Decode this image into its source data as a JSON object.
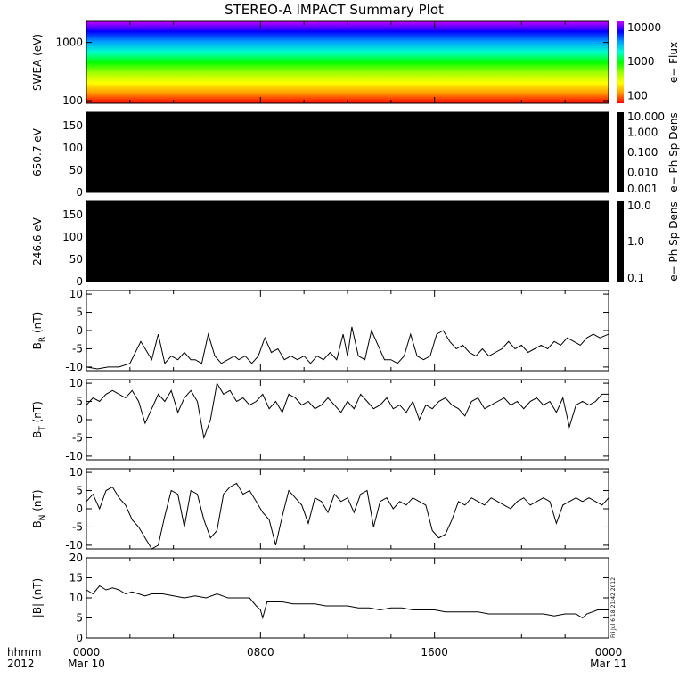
{
  "chart_data": {
    "type": "line",
    "title": "STEREO-A IMPACT Summary Plot",
    "x_axis": {
      "ticks": [
        "0000",
        "0800",
        "1600",
        "0000"
      ],
      "tick_hours": [
        0,
        8,
        16,
        24
      ],
      "sublabels": [
        "Mar 10",
        "",
        "",
        "Mar 11"
      ],
      "left_labels": [
        "hhmm",
        "2012"
      ],
      "range_hours": [
        0,
        24
      ]
    },
    "timestamp": "Fri Jul  6 18:21:42 2012",
    "panels": [
      {
        "id": "swea",
        "type": "heatmap",
        "ylabel": "SWEA (eV)",
        "yscale": "log",
        "yticks": [
          "1000",
          "100"
        ],
        "ytick_values": [
          1000,
          100
        ],
        "ylim": [
          90,
          2300
        ],
        "colorbar": {
          "label": "e− Flux",
          "ticks": [
            "10000",
            "1000",
            "100"
          ],
          "tick_values": [
            10000,
            1000,
            100
          ],
          "range": [
            60,
            15000
          ],
          "colormap": [
            "#cc00ff",
            "#0000ff",
            "#00a0ff",
            "#00ffcc",
            "#00ff00",
            "#a0ff00",
            "#ffff00",
            "#ff9900",
            "#ff0000"
          ]
        }
      },
      {
        "id": "pad650",
        "type": "heatmap",
        "ylabel": "650.7 eV",
        "yticks": [
          "150",
          "100",
          "50",
          "0"
        ],
        "ytick_values": [
          150,
          100,
          50,
          0
        ],
        "ylim": [
          0,
          180
        ],
        "fill": "#000000",
        "colorbar": {
          "label": "e− Ph Sp Dens",
          "ticks": [
            "10.000",
            "1.000",
            "0.100",
            "0.010",
            "0.001"
          ],
          "tick_values": [
            10,
            1,
            0.1,
            0.01,
            0.001
          ],
          "scale": "log",
          "range": [
            0.001,
            10
          ],
          "fill": "#000000"
        }
      },
      {
        "id": "pad246",
        "type": "heatmap",
        "ylabel": "246.6 eV",
        "yticks": [
          "150",
          "100",
          "50",
          "0"
        ],
        "ytick_values": [
          150,
          100,
          50,
          0
        ],
        "ylim": [
          0,
          180
        ],
        "fill": "#000000",
        "colorbar": {
          "label": "e− Ph Sp Dens",
          "ticks": [
            "10.0",
            "1.0",
            "0.1"
          ],
          "tick_values": [
            10,
            1,
            0.1
          ],
          "scale": "log",
          "range": [
            0.1,
            10
          ],
          "fill": "#000000"
        }
      },
      {
        "id": "br",
        "type": "line",
        "ylabel": "B",
        "ylabel_sub": "R",
        "ylabel_unit": " (nT)",
        "yticks": [
          "10",
          "5",
          "0",
          "-5",
          "-10"
        ],
        "ytick_values": [
          10,
          5,
          0,
          -5,
          -10
        ],
        "ylim": [
          -11,
          11
        ],
        "x": [
          0,
          0.5,
          1,
          1.5,
          2,
          2.5,
          3,
          3.3,
          3.6,
          3.9,
          4.2,
          4.5,
          4.8,
          5,
          5.3,
          5.6,
          5.9,
          6.2,
          6.5,
          6.8,
          7,
          7.3,
          7.6,
          7.9,
          8.2,
          8.5,
          8.8,
          9.1,
          9.4,
          9.7,
          10,
          10.3,
          10.6,
          10.9,
          11.2,
          11.5,
          11.8,
          12,
          12.2,
          12.5,
          12.8,
          13.1,
          13.4,
          13.7,
          14,
          14.3,
          14.6,
          14.9,
          15.2,
          15.5,
          15.8,
          16.1,
          16.4,
          16.7,
          17,
          17.3,
          17.6,
          17.9,
          18.2,
          18.5,
          18.8,
          19.1,
          19.4,
          19.7,
          20,
          20.3,
          20.6,
          20.9,
          21.2,
          21.5,
          21.8,
          22.1,
          22.4,
          22.7,
          23,
          23.3,
          23.6,
          24
        ],
        "y": [
          -10,
          -10.5,
          -10,
          -10,
          -9,
          -3,
          -8,
          -1,
          -9,
          -7,
          -8,
          -6,
          -8,
          -8,
          -9,
          -1,
          -7,
          -9,
          -8,
          -7,
          -8,
          -7,
          -9,
          -7,
          -2,
          -6,
          -5,
          -8,
          -7,
          -8,
          -7,
          -9,
          -7,
          -8,
          -6,
          -8,
          -1,
          -7,
          1,
          -7,
          -8,
          0,
          -4,
          -8,
          -8,
          -9,
          -7,
          -1,
          -7,
          -8,
          -7,
          -1,
          0,
          -3,
          -5,
          -4,
          -6,
          -7,
          -5,
          -7,
          -6,
          -5,
          -3,
          -5,
          -4,
          -6,
          -5,
          -4,
          -5,
          -3,
          -4,
          -2,
          -3,
          -4,
          -2,
          -1,
          -2,
          -1
        ]
      },
      {
        "id": "bt",
        "type": "line",
        "ylabel": "B",
        "ylabel_sub": "T",
        "ylabel_unit": " (nT)",
        "yticks": [
          "10",
          "5",
          "0",
          "-5",
          "-10"
        ],
        "ytick_values": [
          10,
          5,
          0,
          -5,
          -10
        ],
        "ylim": [
          -11,
          11
        ],
        "x": [
          0,
          0.3,
          0.6,
          0.9,
          1.2,
          1.5,
          1.8,
          2.1,
          2.4,
          2.7,
          3,
          3.3,
          3.6,
          3.9,
          4.2,
          4.5,
          4.8,
          5.1,
          5.4,
          5.7,
          6,
          6.3,
          6.6,
          6.9,
          7.2,
          7.5,
          7.8,
          8.1,
          8.4,
          8.7,
          9,
          9.3,
          9.6,
          9.9,
          10.2,
          10.5,
          10.8,
          11.1,
          11.4,
          11.7,
          12,
          12.3,
          12.6,
          12.9,
          13.2,
          13.5,
          13.8,
          14.1,
          14.4,
          14.7,
          15,
          15.3,
          15.6,
          15.9,
          16.2,
          16.5,
          16.8,
          17.1,
          17.4,
          17.7,
          18,
          18.3,
          18.6,
          18.9,
          19.2,
          19.5,
          19.8,
          20.1,
          20.4,
          20.7,
          21,
          21.3,
          21.6,
          21.9,
          22.2,
          22.5,
          22.8,
          23.1,
          23.4,
          23.7,
          24
        ],
        "y": [
          4,
          6,
          5,
          7,
          8,
          7,
          6,
          8,
          5,
          -1,
          3,
          7,
          5,
          8,
          2,
          6,
          8,
          5,
          -5,
          0,
          10,
          7,
          8,
          5,
          6,
          4,
          5,
          7,
          3,
          5,
          2,
          7,
          6,
          4,
          5,
          3,
          4,
          6,
          4,
          2,
          5,
          3,
          7,
          5,
          3,
          4,
          6,
          3,
          4,
          2,
          5,
          0,
          4,
          3,
          5,
          6,
          4,
          3,
          1,
          5,
          6,
          3,
          4,
          5,
          6,
          4,
          5,
          3,
          5,
          6,
          4,
          5,
          2,
          6,
          -2,
          4,
          5,
          4,
          5,
          7,
          7
        ]
      },
      {
        "id": "bn",
        "type": "line",
        "ylabel": "B",
        "ylabel_sub": "N",
        "ylabel_unit": " (nT)",
        "yticks": [
          "10",
          "5",
          "0",
          "-5",
          "-10"
        ],
        "ytick_values": [
          10,
          5,
          0,
          -5,
          -10
        ],
        "ylim": [
          -11,
          11
        ],
        "x": [
          0,
          0.3,
          0.6,
          0.9,
          1.2,
          1.5,
          1.8,
          2.1,
          2.4,
          2.7,
          3,
          3.3,
          3.6,
          3.9,
          4.2,
          4.5,
          4.8,
          5.1,
          5.4,
          5.7,
          6,
          6.3,
          6.6,
          6.9,
          7.2,
          7.5,
          7.8,
          8.1,
          8.4,
          8.7,
          9,
          9.3,
          9.6,
          9.9,
          10.2,
          10.5,
          10.8,
          11.1,
          11.4,
          11.7,
          12,
          12.3,
          12.6,
          12.9,
          13.2,
          13.5,
          13.8,
          14.1,
          14.4,
          14.7,
          15,
          15.3,
          15.6,
          15.9,
          16.2,
          16.5,
          16.8,
          17.1,
          17.4,
          17.7,
          18,
          18.3,
          18.6,
          18.9,
          19.2,
          19.5,
          19.8,
          20.1,
          20.4,
          20.7,
          21,
          21.3,
          21.6,
          21.9,
          22.2,
          22.5,
          22.8,
          23.1,
          23.4,
          23.7,
          24
        ],
        "y": [
          2,
          4,
          0,
          5,
          6,
          3,
          1,
          -3,
          -5,
          -8,
          -11,
          -10,
          -2,
          5,
          4,
          -5,
          5,
          4,
          -3,
          -8,
          -6,
          4,
          6,
          7,
          4,
          5,
          2,
          -1,
          -3,
          -10,
          -2,
          5,
          3,
          1,
          -4,
          3,
          2,
          -1,
          4,
          2,
          3,
          -1,
          4,
          5,
          -5,
          2,
          3,
          0,
          2,
          1,
          3,
          2,
          1,
          -6,
          -8,
          -7,
          -3,
          2,
          1,
          3,
          2,
          1,
          3,
          2,
          1,
          0,
          2,
          3,
          1,
          2,
          3,
          2,
          -4,
          1,
          2,
          3,
          2,
          3,
          2,
          1,
          3
        ]
      },
      {
        "id": "bmag",
        "type": "line",
        "ylabel": "|B| (nT)",
        "yticks": [
          "20",
          "15",
          "10",
          "5",
          "0"
        ],
        "ytick_values": [
          20,
          15,
          10,
          5,
          0
        ],
        "ylim": [
          0,
          20
        ],
        "x": [
          0,
          0.3,
          0.6,
          0.9,
          1.2,
          1.5,
          1.8,
          2.1,
          2.4,
          2.7,
          3,
          3.5,
          4,
          4.5,
          5,
          5.5,
          6,
          6.5,
          7,
          7.5,
          7.8,
          8,
          8.1,
          8.3,
          8.5,
          9,
          9.5,
          10,
          10.5,
          11,
          11.5,
          12,
          12.5,
          13,
          13.5,
          14,
          14.5,
          15,
          15.5,
          16,
          16.5,
          17,
          17.5,
          18,
          18.5,
          19,
          19.5,
          20,
          20.5,
          21,
          21.5,
          22,
          22.5,
          22.8,
          23,
          23.5,
          24
        ],
        "y": [
          12,
          11,
          13,
          12,
          12.5,
          12,
          11,
          11.5,
          11,
          10.5,
          11,
          11,
          10.5,
          10,
          10.5,
          10,
          11,
          10,
          10,
          10,
          8,
          7,
          5,
          9,
          9,
          9,
          8.5,
          8.5,
          8.5,
          8,
          8,
          8,
          7.5,
          7.5,
          7,
          7.5,
          7.5,
          7,
          7,
          7,
          6.5,
          6.5,
          6.5,
          6.5,
          6,
          6,
          6,
          6,
          6,
          6,
          5.5,
          6,
          6,
          5,
          6,
          7,
          7
        ]
      }
    ]
  }
}
